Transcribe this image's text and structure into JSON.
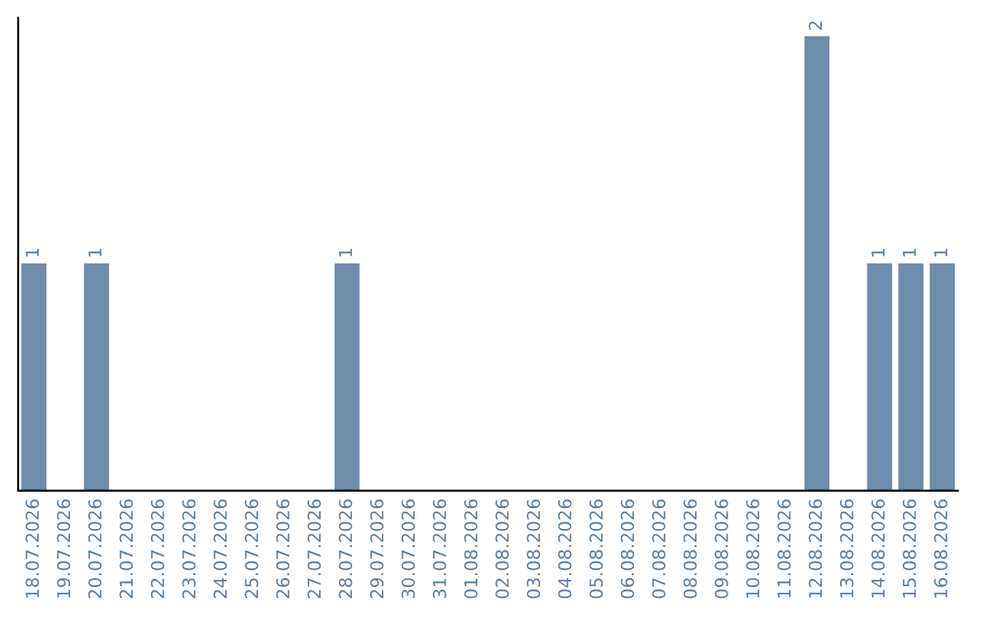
{
  "chart_data": {
    "type": "bar",
    "categories": [
      "18.07.2026",
      "19.07.2026",
      "20.07.2026",
      "21.07.2026",
      "22.07.2026",
      "23.07.2026",
      "24.07.2026",
      "25.07.2026",
      "26.07.2026",
      "27.07.2026",
      "28.07.2026",
      "29.07.2026",
      "30.07.2026",
      "31.07.2026",
      "01.08.2026",
      "02.08.2026",
      "03.08.2026",
      "04.08.2026",
      "05.08.2026",
      "06.08.2026",
      "07.08.2026",
      "08.08.2026",
      "09.08.2026",
      "10.08.2026",
      "11.08.2026",
      "12.08.2026",
      "13.08.2026",
      "14.08.2026",
      "15.08.2026",
      "16.08.2026"
    ],
    "values": [
      1,
      0,
      1,
      0,
      0,
      0,
      0,
      0,
      0,
      0,
      1,
      0,
      0,
      0,
      0,
      0,
      0,
      0,
      0,
      0,
      0,
      0,
      0,
      0,
      0,
      2,
      0,
      1,
      1,
      1
    ],
    "value_labels": [
      "1",
      null,
      "1",
      null,
      null,
      null,
      null,
      null,
      null,
      null,
      "1",
      null,
      null,
      null,
      null,
      null,
      null,
      null,
      null,
      null,
      null,
      null,
      null,
      null,
      null,
      "2",
      null,
      "1",
      "1",
      "1"
    ],
    "color": "#6d8dab",
    "ylim": [
      0,
      2.08
    ],
    "tick_labels": "x",
    "grid": false,
    "legend": false
  }
}
